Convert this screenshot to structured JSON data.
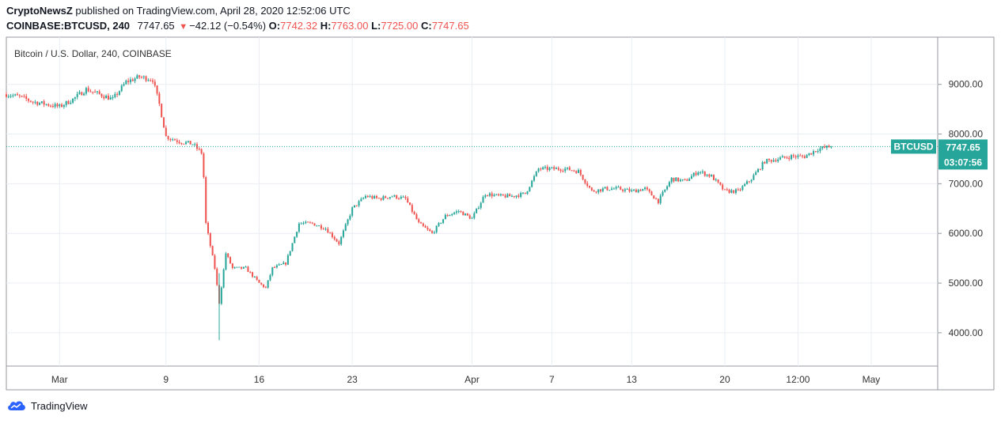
{
  "header": {
    "author": "CryptoNewsZ",
    "published_text": "published on TradingView.com, April 28, 2020 12:52:06 UTC",
    "symbol": "COINBASE:BTCUSD, 240",
    "last": "7747.65",
    "change": "−42.12 (−0.54%)",
    "o_label": "O:",
    "o_value": "7742.32",
    "h_label": "H:",
    "h_value": "7763.00",
    "l_label": "L:",
    "l_value": "7725.00",
    "c_label": "C:",
    "c_value": "7747.65"
  },
  "footer": {
    "brand": "TradingView"
  },
  "colors": {
    "up": "#26a69a",
    "down": "#ef5350",
    "grid": "#e9eef3",
    "axis": "#555555",
    "badge": "#26a69a"
  },
  "chart_data": {
    "type": "candlestick",
    "title": "Bitcoin / U.S. Dollar, 240, COINBASE",
    "y_ticks": [
      4000,
      5000,
      6000,
      7000,
      8000,
      9000
    ],
    "y_tick_labels": [
      "4000.00",
      "5000.00",
      "6000.00",
      "7000.00",
      "8000.00",
      "9000.00"
    ],
    "ylim": [
      3330,
      9950
    ],
    "x_tick_labels": [
      {
        "date": "2020-03-01",
        "label": "Mar"
      },
      {
        "date": "2020-03-09",
        "label": "9"
      },
      {
        "date": "2020-03-16",
        "label": "16"
      },
      {
        "date": "2020-03-23",
        "label": "23"
      },
      {
        "date": "2020-04-01",
        "label": "Apr"
      },
      {
        "date": "2020-04-07",
        "label": "7"
      },
      {
        "date": "2020-04-13",
        "label": "13"
      },
      {
        "date": "2020-04-20",
        "label": "20"
      },
      {
        "date": "2020-04-25 12:00",
        "label": "12:00"
      },
      {
        "date": "2020-05-01",
        "label": "May"
      }
    ],
    "xlim": [
      "2020-02-26",
      "2020-05-06"
    ],
    "grid": true,
    "current_price": 7747.65,
    "price_label": "BTCUSD",
    "price_value_label": "7747.65",
    "countdown": "03:07:56",
    "close_path": [
      [
        "2020-02-26",
        8800
      ],
      [
        "2020-02-27",
        8750
      ],
      [
        "2020-02-28",
        8650
      ],
      [
        "2020-02-29",
        8600
      ],
      [
        "2020-03-01",
        8550
      ],
      [
        "2020-03-02",
        8700
      ],
      [
        "2020-03-03",
        8900
      ],
      [
        "2020-03-04",
        8800
      ],
      [
        "2020-03-05",
        8700
      ],
      [
        "2020-03-06",
        9050
      ],
      [
        "2020-03-07",
        9150
      ],
      [
        "2020-03-08",
        9100
      ],
      [
        "2020-03-08 12:00",
        8600
      ],
      [
        "2020-03-09",
        7950
      ],
      [
        "2020-03-10",
        7850
      ],
      [
        "2020-03-11",
        7800
      ],
      [
        "2020-03-11 18:00",
        7600
      ],
      [
        "2020-03-12",
        6200
      ],
      [
        "2020-03-12 16:00",
        5300
      ],
      [
        "2020-03-13",
        4600
      ],
      [
        "2020-03-13 12:00",
        5600
      ],
      [
        "2020-03-14",
        5300
      ],
      [
        "2020-03-15",
        5300
      ],
      [
        "2020-03-16",
        5000
      ],
      [
        "2020-03-16 12:00",
        4900
      ],
      [
        "2020-03-17",
        5300
      ],
      [
        "2020-03-18",
        5400
      ],
      [
        "2020-03-19",
        6200
      ],
      [
        "2020-03-20",
        6200
      ],
      [
        "2020-03-21",
        6100
      ],
      [
        "2020-03-22",
        5800
      ],
      [
        "2020-03-23",
        6500
      ],
      [
        "2020-03-24",
        6750
      ],
      [
        "2020-03-25",
        6700
      ],
      [
        "2020-03-26",
        6750
      ],
      [
        "2020-03-27",
        6700
      ],
      [
        "2020-03-28",
        6200
      ],
      [
        "2020-03-29",
        6000
      ],
      [
        "2020-03-30",
        6350
      ],
      [
        "2020-03-31",
        6450
      ],
      [
        "2020-04-01",
        6300
      ],
      [
        "2020-04-02",
        6800
      ],
      [
        "2020-04-03",
        6750
      ],
      [
        "2020-04-04",
        6750
      ],
      [
        "2020-04-05",
        6800
      ],
      [
        "2020-04-06",
        7300
      ],
      [
        "2020-04-07",
        7300
      ],
      [
        "2020-04-08",
        7300
      ],
      [
        "2020-04-09",
        7250
      ],
      [
        "2020-04-10",
        6850
      ],
      [
        "2020-04-11",
        6900
      ],
      [
        "2020-04-12",
        6900
      ],
      [
        "2020-04-13",
        6850
      ],
      [
        "2020-04-14",
        6900
      ],
      [
        "2020-04-15",
        6650
      ],
      [
        "2020-04-16",
        7100
      ],
      [
        "2020-04-17",
        7050
      ],
      [
        "2020-04-18",
        7250
      ],
      [
        "2020-04-19",
        7150
      ],
      [
        "2020-04-20",
        6850
      ],
      [
        "2020-04-21",
        6850
      ],
      [
        "2020-04-22",
        7100
      ],
      [
        "2020-04-23",
        7450
      ],
      [
        "2020-04-24",
        7500
      ],
      [
        "2020-04-25",
        7550
      ],
      [
        "2020-04-26",
        7550
      ],
      [
        "2020-04-27",
        7700
      ],
      [
        "2020-04-28",
        7747.65
      ]
    ]
  }
}
